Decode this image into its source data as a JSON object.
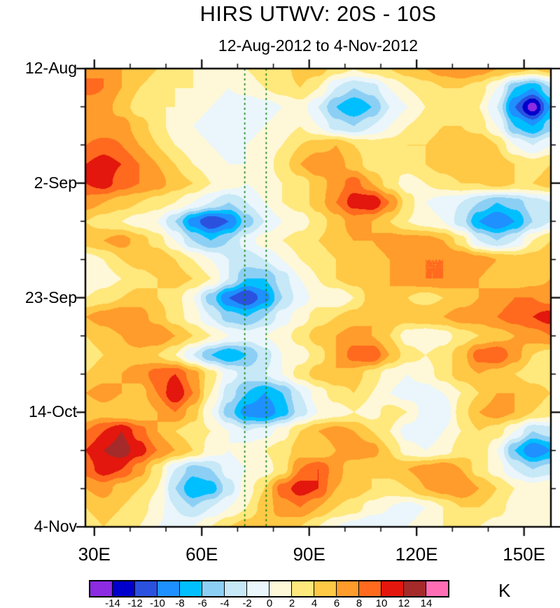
{
  "chart_data": {
    "type": "heatmap",
    "title": "HIRS UTWV: 20S - 10S",
    "subtitle": "12-Aug-2012 to 4-Nov-2012",
    "x_axis": {
      "range_lon_deg_east": [
        27.5,
        157.5
      ],
      "major_ticks_lon": [
        30,
        60,
        90,
        120,
        150
      ],
      "tick_labels": [
        "30E",
        "60E",
        "90E",
        "120E",
        "150E"
      ],
      "minor_tick_step_lon": 10
    },
    "y_axis": {
      "orientation": "time increases downward",
      "range_days_from_start": [
        0,
        84
      ],
      "major_tick_days": [
        0,
        21,
        42,
        63,
        84
      ],
      "tick_labels": [
        "12-Aug",
        "2-Sep",
        "23-Sep",
        "14-Oct",
        "4-Nov"
      ],
      "minor_tick_step_days": 7
    },
    "levels": [
      -14,
      -12,
      -10,
      -8,
      -6,
      -4,
      -2,
      0,
      2,
      4,
      6,
      8,
      10,
      12,
      14
    ],
    "colors": [
      "#8C2BE2",
      "#0000CD",
      "#2A52DF",
      "#1E90FF",
      "#00BFFF",
      "#8CCFF5",
      "#C6E8F7",
      "#EAF6FB",
      "#FEF8D8",
      "#FFE87C",
      "#FFC845",
      "#FF9C2B",
      "#FF6A1E",
      "#E3170D",
      "#A52A2A",
      "#FF6EB4"
    ],
    "colorbar": {
      "tick_labels": [
        "-14",
        "-12",
        "-10",
        "-8",
        "-6",
        "-4",
        "-2",
        "0",
        "2",
        "4",
        "6",
        "8",
        "10",
        "12",
        "14"
      ],
      "unit": "K"
    },
    "reference_lines": {
      "type": "vertical-dashed",
      "color": "#0F7F0F",
      "lon_values": [
        72,
        78
      ]
    },
    "grid": {
      "units": "K",
      "lon_min": 27.5,
      "lon_step_deg": 5,
      "day_min": 0,
      "day_step_days": 3.5,
      "values": [
        [
          7,
          8,
          6,
          5,
          4,
          3,
          2,
          1,
          1,
          2,
          3,
          3,
          5,
          5,
          3,
          2,
          3,
          4,
          5,
          6,
          7,
          8,
          7,
          6,
          5,
          4,
          5
        ],
        [
          9,
          8,
          6,
          4,
          3,
          2,
          2,
          1,
          0,
          1,
          2,
          3,
          4,
          2,
          -2,
          -4,
          -3,
          0,
          2,
          3,
          4,
          4,
          3,
          0,
          -6,
          -8,
          -4
        ],
        [
          6,
          7,
          5,
          3,
          2,
          2,
          1,
          0,
          -1,
          -2,
          -1,
          0,
          1,
          -2,
          -6,
          -8,
          -6,
          -2,
          0,
          2,
          2,
          3,
          2,
          -2,
          -10,
          -15,
          -8
        ],
        [
          6,
          6,
          7,
          5,
          3,
          1,
          0,
          -1,
          -2,
          -1,
          0,
          1,
          2,
          0,
          -3,
          -4,
          -2,
          0,
          2,
          3,
          4,
          4,
          3,
          0,
          -6,
          -8,
          -5
        ],
        [
          8,
          9,
          8,
          6,
          4,
          2,
          1,
          0,
          -1,
          0,
          1,
          2,
          4,
          5,
          6,
          4,
          3,
          3,
          4,
          4,
          5,
          5,
          6,
          4,
          0,
          -2,
          0
        ],
        [
          10,
          11,
          10,
          8,
          6,
          4,
          2,
          1,
          0,
          0,
          1,
          3,
          6,
          8,
          7,
          5,
          3,
          2,
          3,
          4,
          5,
          6,
          6,
          5,
          4,
          3,
          4
        ],
        [
          10,
          11,
          9,
          8,
          7,
          5,
          4,
          2,
          1,
          0,
          1,
          2,
          3,
          5,
          7,
          9,
          6,
          3,
          1,
          2,
          3,
          4,
          4,
          5,
          4,
          4,
          5
        ],
        [
          7,
          6,
          5,
          4,
          3,
          2,
          0,
          -2,
          -4,
          -2,
          0,
          2,
          3,
          5,
          8,
          11,
          12,
          8,
          3,
          0,
          -1,
          -2,
          -4,
          -6,
          -5,
          -3,
          -2
        ],
        [
          4,
          3,
          2,
          1,
          0,
          -4,
          -9,
          -12,
          -10,
          -5,
          -2,
          0,
          1,
          3,
          5,
          7,
          6,
          4,
          2,
          1,
          0,
          -3,
          -8,
          -10,
          -8,
          -4,
          -2
        ],
        [
          5,
          6,
          7,
          5,
          3,
          0,
          -4,
          -6,
          -4,
          -1,
          1,
          2,
          3,
          4,
          5,
          6,
          6,
          7,
          7,
          7,
          6,
          3,
          -2,
          -4,
          -2,
          2,
          4
        ],
        [
          1,
          2,
          4,
          5,
          6,
          4,
          2,
          0,
          -2,
          -3,
          -2,
          0,
          2,
          3,
          4,
          4,
          5,
          6,
          7,
          8,
          8,
          8,
          7,
          6,
          5,
          5,
          6
        ],
        [
          0,
          1,
          2,
          3,
          4,
          5,
          4,
          2,
          -2,
          -6,
          -6,
          -3,
          0,
          2,
          4,
          5,
          5,
          6,
          7,
          8,
          8,
          7,
          6,
          5,
          4,
          5,
          6
        ],
        [
          2,
          3,
          4,
          5,
          4,
          3,
          0,
          -5,
          -10,
          -12,
          -9,
          -4,
          -1,
          1,
          0,
          2,
          5,
          6,
          4,
          3,
          4,
          5,
          6,
          7,
          8,
          8,
          7
        ],
        [
          6,
          7,
          8,
          7,
          5,
          3,
          1,
          -2,
          -5,
          -6,
          -4,
          -1,
          1,
          3,
          4,
          5,
          6,
          5,
          5,
          6,
          6,
          7,
          7,
          8,
          9,
          10,
          11
        ],
        [
          4,
          5,
          6,
          8,
          8,
          6,
          4,
          2,
          0,
          -1,
          0,
          1,
          3,
          5,
          6,
          7,
          6,
          4,
          1,
          0,
          1,
          3,
          4,
          5,
          6,
          7,
          8
        ],
        [
          3,
          4,
          5,
          5,
          4,
          2,
          -2,
          -6,
          -8,
          -6,
          -3,
          0,
          1,
          3,
          6,
          9,
          10,
          6,
          3,
          2,
          3,
          5,
          9,
          10,
          7,
          4,
          3
        ],
        [
          4,
          5,
          6,
          7,
          9,
          10,
          7,
          3,
          -1,
          -3,
          -2,
          0,
          3,
          5,
          6,
          5,
          3,
          1,
          0,
          1,
          3,
          5,
          6,
          5,
          4,
          3,
          3
        ],
        [
          6,
          7,
          6,
          5,
          8,
          12,
          8,
          2,
          -3,
          -6,
          -8,
          -6,
          -2,
          1,
          3,
          4,
          2,
          0,
          -1,
          -1,
          0,
          2,
          4,
          6,
          6,
          5,
          4
        ],
        [
          4,
          5,
          4,
          4,
          6,
          8,
          5,
          0,
          -5,
          -9,
          -10,
          -7,
          -3,
          0,
          1,
          2,
          1,
          3,
          2,
          -1,
          -2,
          3,
          6,
          7,
          6,
          4,
          3
        ],
        [
          8,
          10,
          12,
          9,
          6,
          4,
          3,
          2,
          0,
          -2,
          -1,
          1,
          4,
          6,
          7,
          6,
          4,
          2,
          -1,
          -2,
          0,
          2,
          4,
          3,
          0,
          -4,
          -3
        ],
        [
          10,
          12,
          13,
          11,
          8,
          6,
          4,
          1,
          0,
          1,
          2,
          3,
          5,
          4,
          6,
          8,
          7,
          4,
          1,
          0,
          1,
          3,
          4,
          0,
          -6,
          -10,
          -8
        ],
        [
          9,
          11,
          10,
          7,
          3,
          -2,
          -5,
          -4,
          -1,
          0,
          1,
          3,
          8,
          10,
          7,
          4,
          4,
          5,
          6,
          7,
          8,
          6,
          3,
          1,
          -2,
          -4,
          -3
        ],
        [
          6,
          7,
          5,
          4,
          2,
          -4,
          -8,
          -7,
          -3,
          1,
          4,
          9,
          11,
          10,
          6,
          5,
          4,
          3,
          4,
          6,
          7,
          8,
          6,
          4,
          2,
          1,
          2
        ],
        [
          4,
          5,
          4,
          3,
          1,
          -2,
          -4,
          -2,
          0,
          2,
          5,
          7,
          8,
          6,
          4,
          3,
          1,
          0,
          -1,
          0,
          2,
          4,
          4,
          3,
          1,
          0,
          1
        ],
        [
          3,
          4,
          3,
          2,
          0,
          -1,
          0,
          2,
          4,
          5,
          6,
          5,
          4,
          2,
          0,
          -1,
          -2,
          -1,
          0,
          1,
          2,
          3,
          2,
          1,
          0,
          1,
          2
        ]
      ]
    }
  }
}
